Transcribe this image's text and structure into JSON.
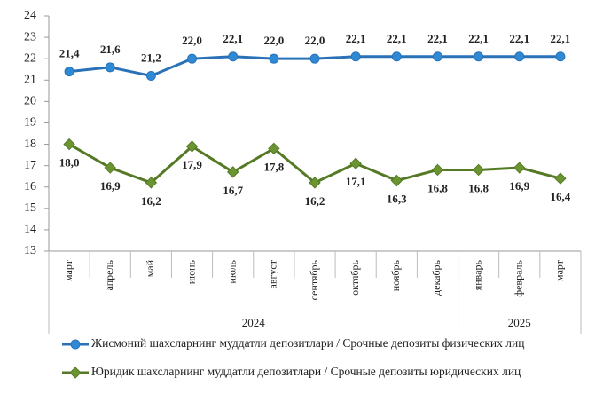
{
  "chart_data": {
    "type": "line",
    "categories": [
      "март",
      "апрель",
      "май",
      "июнь",
      "июль",
      "август",
      "сентябрь",
      "октябрь",
      "ноябрь",
      "декабрь",
      "январь",
      "февраль",
      "март"
    ],
    "category_groups": [
      {
        "label": "2024",
        "count": 10
      },
      {
        "label": "2025",
        "count": 3
      }
    ],
    "series": [
      {
        "name": "Жисмоний шахсларнинг  муддатли депозитлари / Срочные депозиты физических лиц",
        "color": "#2a72b8",
        "marker": "circle",
        "marker_color": "#2f8ad6",
        "values": [
          21.4,
          21.6,
          21.2,
          22.0,
          22.1,
          22.0,
          22.0,
          22.1,
          22.1,
          22.1,
          22.1,
          22.1,
          22.1
        ],
        "value_labels": [
          "21,4",
          "21,6",
          "21,2",
          "22,0",
          "22,1",
          "22,0",
          "22,0",
          "22,1",
          "22,1",
          "22,1",
          "22,1",
          "22,1",
          "22,1"
        ]
      },
      {
        "name": "Юридик шахсларнинг  муддатли депозитлари / Срочные депозиты юридических лиц",
        "color": "#557a26",
        "marker": "diamond",
        "marker_color": "#6b9530",
        "values": [
          18.0,
          16.9,
          16.2,
          17.9,
          16.7,
          17.8,
          16.2,
          17.1,
          16.3,
          16.8,
          16.8,
          16.9,
          16.4
        ],
        "value_labels": [
          "18,0",
          "16,9",
          "16,2",
          "17,9",
          "16,7",
          "17,8",
          "16,2",
          "17,1",
          "16,3",
          "16,8",
          "16,8",
          "16,9",
          "16,4"
        ]
      }
    ],
    "ylim": [
      13,
      24
    ],
    "yticks": [
      13,
      14,
      15,
      16,
      17,
      18,
      19,
      20,
      21,
      22,
      23,
      24
    ],
    "grid": false,
    "legend": "bottom"
  }
}
